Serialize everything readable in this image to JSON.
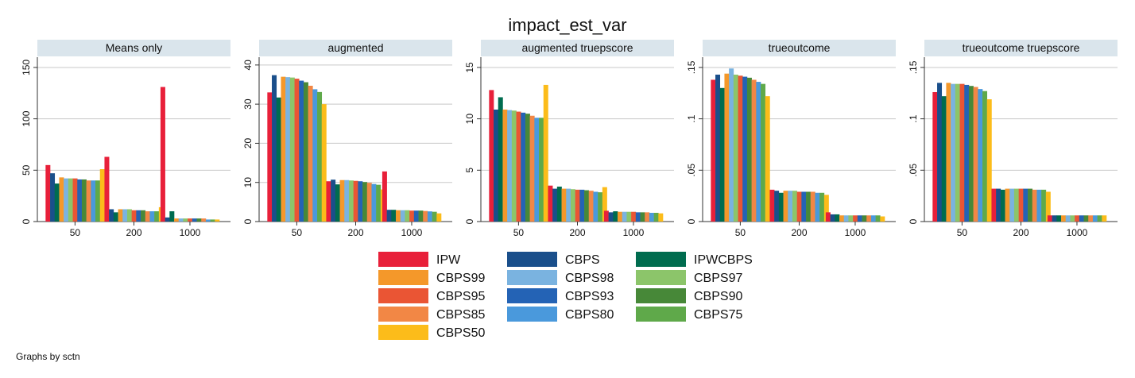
{
  "title": "impact_est_var",
  "note": "Graphs by sctn",
  "legend_placement": "bottom",
  "legend": [
    {
      "name": "IPW",
      "color": "#e8203a"
    },
    {
      "name": "CBPS",
      "color": "#1a4f8b"
    },
    {
      "name": "IPWCBPS",
      "color": "#006c4f"
    },
    {
      "name": "CBPS99",
      "color": "#f4982a"
    },
    {
      "name": "CBPS98",
      "color": "#7ab3e0"
    },
    {
      "name": "CBPS97",
      "color": "#8cc56a"
    },
    {
      "name": "CBPS95",
      "color": "#ea5534"
    },
    {
      "name": "CBPS93",
      "color": "#2463b5"
    },
    {
      "name": "CBPS90",
      "color": "#478838"
    },
    {
      "name": "CBPS85",
      "color": "#f28745"
    },
    {
      "name": "CBPS80",
      "color": "#4a99dc"
    },
    {
      "name": "CBPS75",
      "color": "#5fa94a"
    },
    {
      "name": "CBPS50",
      "color": "#fcbc1a"
    }
  ],
  "chart_data": [
    {
      "type": "bar",
      "panel": "Means only",
      "categories": [
        "50",
        "200",
        "1000"
      ],
      "ylim": [
        0,
        160
      ],
      "yticks": [
        0,
        50,
        100,
        150
      ],
      "ytick_labels": [
        "0",
        "50",
        "100",
        "150"
      ],
      "grid": true,
      "series": [
        {
          "name": "IPW",
          "values": [
            55,
            63,
            131
          ]
        },
        {
          "name": "CBPS",
          "values": [
            47,
            12,
            4
          ]
        },
        {
          "name": "IPWCBPS",
          "values": [
            37,
            9,
            10
          ]
        },
        {
          "name": "CBPS99",
          "values": [
            43,
            12,
            3
          ]
        },
        {
          "name": "CBPS98",
          "values": [
            42,
            12,
            3
          ]
        },
        {
          "name": "CBPS97",
          "values": [
            42,
            12,
            3
          ]
        },
        {
          "name": "CBPS95",
          "values": [
            42,
            11,
            3
          ]
        },
        {
          "name": "CBPS93",
          "values": [
            41,
            11,
            3
          ]
        },
        {
          "name": "CBPS90",
          "values": [
            41,
            11,
            3
          ]
        },
        {
          "name": "CBPS85",
          "values": [
            40,
            10,
            3
          ]
        },
        {
          "name": "CBPS80",
          "values": [
            40,
            10,
            2
          ]
        },
        {
          "name": "CBPS75",
          "values": [
            40,
            10,
            2
          ]
        },
        {
          "name": "CBPS50",
          "values": [
            51,
            14,
            2
          ]
        }
      ]
    },
    {
      "type": "bar",
      "panel": "augmented",
      "categories": [
        "50",
        "200",
        "1000"
      ],
      "ylim": [
        0,
        42
      ],
      "yticks": [
        0,
        10,
        20,
        30,
        40
      ],
      "ytick_labels": [
        "0",
        "10",
        "20",
        "30",
        "40"
      ],
      "grid": true,
      "series": [
        {
          "name": "IPW",
          "values": [
            33,
            10.3,
            12.8
          ]
        },
        {
          "name": "CBPS",
          "values": [
            37.4,
            10.7,
            3
          ]
        },
        {
          "name": "IPWCBPS",
          "values": [
            31.7,
            9.5,
            3
          ]
        },
        {
          "name": "CBPS99",
          "values": [
            37,
            10.6,
            2.9
          ]
        },
        {
          "name": "CBPS98",
          "values": [
            36.9,
            10.6,
            2.9
          ]
        },
        {
          "name": "CBPS97",
          "values": [
            36.8,
            10.5,
            2.9
          ]
        },
        {
          "name": "CBPS95",
          "values": [
            36.5,
            10.4,
            2.8
          ]
        },
        {
          "name": "CBPS93",
          "values": [
            36,
            10.3,
            2.8
          ]
        },
        {
          "name": "CBPS90",
          "values": [
            35.6,
            10.1,
            2.8
          ]
        },
        {
          "name": "CBPS85",
          "values": [
            34.7,
            9.9,
            2.7
          ]
        },
        {
          "name": "CBPS80",
          "values": [
            33.8,
            9.6,
            2.6
          ]
        },
        {
          "name": "CBPS75",
          "values": [
            33.1,
            9.4,
            2.5
          ]
        },
        {
          "name": "CBPS50",
          "values": [
            30,
            8.2,
            2.1
          ]
        }
      ]
    },
    {
      "type": "bar",
      "panel": "augmented truepscore",
      "categories": [
        "50",
        "200",
        "1000"
      ],
      "ylim": [
        0,
        16
      ],
      "yticks": [
        0,
        5,
        10,
        15
      ],
      "ytick_labels": [
        "0",
        "5",
        "10",
        "15"
      ],
      "grid": true,
      "series": [
        {
          "name": "IPW",
          "values": [
            12.8,
            3.5,
            1.05
          ]
        },
        {
          "name": "CBPS",
          "values": [
            10.9,
            3.2,
            0.9
          ]
        },
        {
          "name": "IPWCBPS",
          "values": [
            12.1,
            3.4,
            1.0
          ]
        },
        {
          "name": "CBPS99",
          "values": [
            10.9,
            3.2,
            0.95
          ]
        },
        {
          "name": "CBPS98",
          "values": [
            10.85,
            3.2,
            0.95
          ]
        },
        {
          "name": "CBPS97",
          "values": [
            10.8,
            3.15,
            0.95
          ]
        },
        {
          "name": "CBPS95",
          "values": [
            10.7,
            3.1,
            0.95
          ]
        },
        {
          "name": "CBPS93",
          "values": [
            10.6,
            3.1,
            0.9
          ]
        },
        {
          "name": "CBPS90",
          "values": [
            10.5,
            3.05,
            0.9
          ]
        },
        {
          "name": "CBPS85",
          "values": [
            10.3,
            3.0,
            0.9
          ]
        },
        {
          "name": "CBPS80",
          "values": [
            10.1,
            2.9,
            0.85
          ]
        },
        {
          "name": "CBPS75",
          "values": [
            10.1,
            2.85,
            0.85
          ]
        },
        {
          "name": "CBPS50",
          "values": [
            13.3,
            3.35,
            0.8
          ]
        }
      ]
    },
    {
      "type": "bar",
      "panel": "trueoutcome",
      "categories": [
        "50",
        "200",
        "1000"
      ],
      "ylim": [
        0,
        0.16
      ],
      "yticks": [
        0,
        0.05,
        0.1,
        0.15
      ],
      "ytick_labels": [
        "0",
        ".05",
        ".1",
        ".15"
      ],
      "grid": true,
      "series": [
        {
          "name": "IPW",
          "values": [
            0.138,
            0.031,
            0.009
          ]
        },
        {
          "name": "CBPS",
          "values": [
            0.143,
            0.03,
            0.007
          ]
        },
        {
          "name": "IPWCBPS",
          "values": [
            0.13,
            0.028,
            0.007
          ]
        },
        {
          "name": "CBPS99",
          "values": [
            0.144,
            0.03,
            0.006
          ]
        },
        {
          "name": "CBPS98",
          "values": [
            0.149,
            0.03,
            0.006
          ]
        },
        {
          "name": "CBPS97",
          "values": [
            0.143,
            0.03,
            0.006
          ]
        },
        {
          "name": "CBPS95",
          "values": [
            0.142,
            0.029,
            0.006
          ]
        },
        {
          "name": "CBPS93",
          "values": [
            0.141,
            0.029,
            0.006
          ]
        },
        {
          "name": "CBPS90",
          "values": [
            0.14,
            0.029,
            0.006
          ]
        },
        {
          "name": "CBPS85",
          "values": [
            0.138,
            0.029,
            0.006
          ]
        },
        {
          "name": "CBPS80",
          "values": [
            0.136,
            0.028,
            0.006
          ]
        },
        {
          "name": "CBPS75",
          "values": [
            0.134,
            0.028,
            0.006
          ]
        },
        {
          "name": "CBPS50",
          "values": [
            0.122,
            0.026,
            0.005
          ]
        }
      ]
    },
    {
      "type": "bar",
      "panel": "trueoutcome truepscore",
      "categories": [
        "50",
        "200",
        "1000"
      ],
      "ylim": [
        0,
        0.16
      ],
      "yticks": [
        0,
        0.05,
        0.1,
        0.15
      ],
      "ytick_labels": [
        "0",
        ".05",
        ".1",
        ".15"
      ],
      "grid": true,
      "series": [
        {
          "name": "IPW",
          "values": [
            0.126,
            0.032,
            0.006
          ]
        },
        {
          "name": "CBPS",
          "values": [
            0.135,
            0.032,
            0.006
          ]
        },
        {
          "name": "IPWCBPS",
          "values": [
            0.122,
            0.031,
            0.006
          ]
        },
        {
          "name": "CBPS99",
          "values": [
            0.135,
            0.032,
            0.006
          ]
        },
        {
          "name": "CBPS98",
          "values": [
            0.134,
            0.032,
            0.006
          ]
        },
        {
          "name": "CBPS97",
          "values": [
            0.134,
            0.032,
            0.006
          ]
        },
        {
          "name": "CBPS95",
          "values": [
            0.134,
            0.032,
            0.006
          ]
        },
        {
          "name": "CBPS93",
          "values": [
            0.133,
            0.032,
            0.006
          ]
        },
        {
          "name": "CBPS90",
          "values": [
            0.132,
            0.032,
            0.006
          ]
        },
        {
          "name": "CBPS85",
          "values": [
            0.131,
            0.031,
            0.006
          ]
        },
        {
          "name": "CBPS80",
          "values": [
            0.129,
            0.031,
            0.006
          ]
        },
        {
          "name": "CBPS75",
          "values": [
            0.127,
            0.031,
            0.006
          ]
        },
        {
          "name": "CBPS50",
          "values": [
            0.119,
            0.029,
            0.006
          ]
        }
      ]
    }
  ]
}
